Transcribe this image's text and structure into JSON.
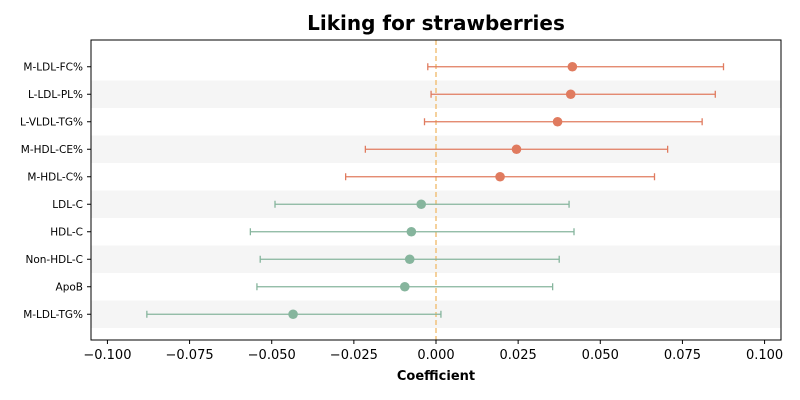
{
  "chart_data": {
    "type": "forest",
    "title": "Liking for strawberries",
    "xlabel": "Coefficient",
    "ylabel": "",
    "xlim": [
      -0.105,
      0.105
    ],
    "xticks": [
      -0.1,
      -0.075,
      -0.05,
      -0.025,
      0.0,
      0.025,
      0.05,
      0.075,
      0.1
    ],
    "xtick_labels": [
      "−0.100",
      "−0.075",
      "−0.050",
      "−0.025",
      "0.000",
      "0.025",
      "0.050",
      "0.075",
      "0.100"
    ],
    "reference_line": 0.0,
    "colors": {
      "positive": "#e07b5f",
      "negative": "#86b59d",
      "reference": "#f2c27b",
      "band": "#f5f5f5"
    },
    "rows": [
      {
        "label": "M-LDL-FC%",
        "estimate": 0.0415,
        "lower": -0.0025,
        "upper": 0.0875
      },
      {
        "label": "L-LDL-PL%",
        "estimate": 0.041,
        "lower": -0.0015,
        "upper": 0.085
      },
      {
        "label": "L-VLDL-TG%",
        "estimate": 0.037,
        "lower": -0.0035,
        "upper": 0.081
      },
      {
        "label": "M-HDL-CE%",
        "estimate": 0.0245,
        "lower": -0.0215,
        "upper": 0.0705
      },
      {
        "label": "M-HDL-C%",
        "estimate": 0.0195,
        "lower": -0.0275,
        "upper": 0.0665
      },
      {
        "label": "LDL-C",
        "estimate": -0.0045,
        "lower": -0.049,
        "upper": 0.0405
      },
      {
        "label": "HDL-C",
        "estimate": -0.0075,
        "lower": -0.0565,
        "upper": 0.042
      },
      {
        "label": "Non-HDL-C",
        "estimate": -0.008,
        "lower": -0.0535,
        "upper": 0.0375
      },
      {
        "label": "ApoB",
        "estimate": -0.0095,
        "lower": -0.0545,
        "upper": 0.0355
      },
      {
        "label": "M-LDL-TG%",
        "estimate": -0.0435,
        "lower": -0.088,
        "upper": 0.0015
      }
    ]
  }
}
